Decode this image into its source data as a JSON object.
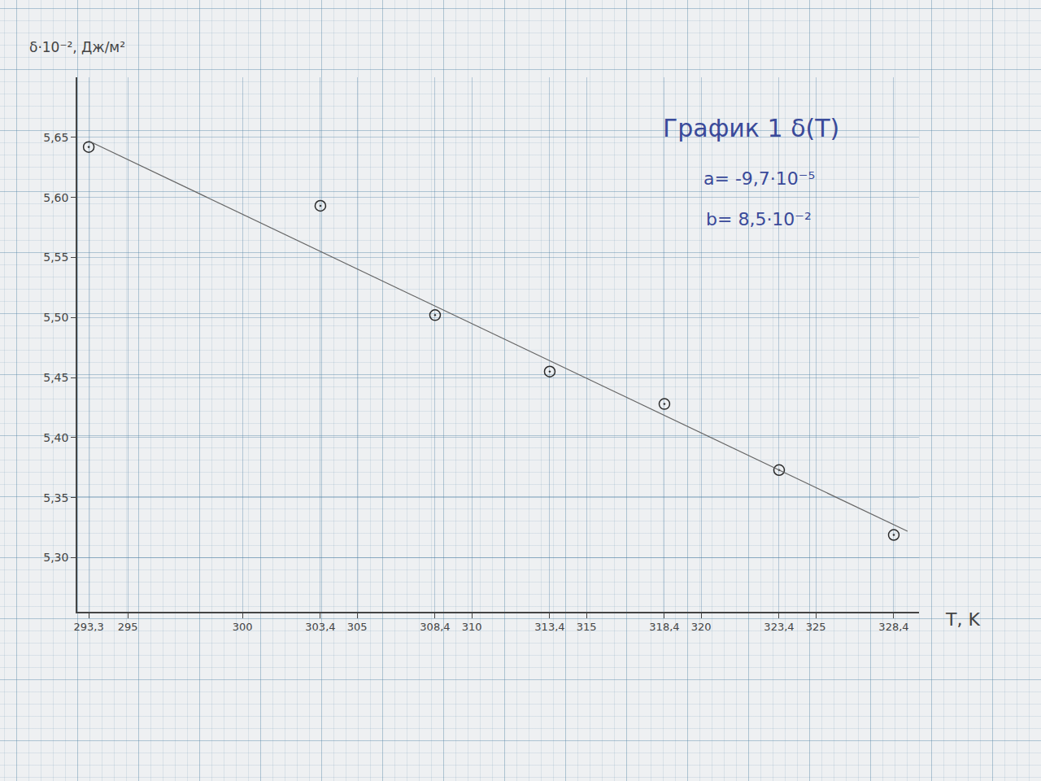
{
  "chart_data": {
    "type": "scatter",
    "title": "График 1 δ(T)",
    "annotations": [
      "a= -9,7·10⁻⁵",
      "b= 8,5·10⁻²"
    ],
    "x_label": "T, K",
    "y_label": "δ·10⁻², Дж/м²",
    "series": [
      {
        "type": "scatter",
        "marker": "circle-open-dot",
        "color": "#2a2a2a",
        "x": [
          293.3,
          303.4,
          308.4,
          313.4,
          318.4,
          323.4,
          328.4
        ],
        "values": [
          5.642,
          5.593,
          5.502,
          5.455,
          5.428,
          5.373,
          5.319
        ]
      },
      {
        "type": "line",
        "line_style": "solid",
        "color": "#666666",
        "x": [
          293.3,
          329.0
        ],
        "values": [
          5.647,
          5.322
        ]
      }
    ],
    "xlim": [
      292.8,
      329.5
    ],
    "ylim": [
      5.255,
      5.7
    ],
    "xticks": [
      {
        "value": 293.3,
        "label": "293,3"
      },
      295,
      300,
      {
        "value": 303.4,
        "label": "303,4"
      },
      305,
      {
        "value": 308.4,
        "label": "308,4"
      },
      310,
      {
        "value": 313.4,
        "label": "313,4"
      },
      315,
      {
        "value": 318.4,
        "label": "318,4"
      },
      320,
      {
        "value": 323.4,
        "label": "323,4"
      },
      325,
      {
        "value": 328.4,
        "label": "328,4"
      }
    ],
    "yticks": [
      {
        "value": 5.3,
        "label": "5,30"
      },
      {
        "value": 5.35,
        "label": "5,35"
      },
      {
        "value": 5.4,
        "label": "5,40"
      },
      {
        "value": 5.45,
        "label": "5,45"
      },
      {
        "value": 5.5,
        "label": "5,50"
      },
      {
        "value": 5.55,
        "label": "5,55"
      },
      {
        "value": 5.6,
        "label": "5,60"
      },
      {
        "value": 5.65,
        "label": "5,65"
      }
    ],
    "grid": true
  }
}
